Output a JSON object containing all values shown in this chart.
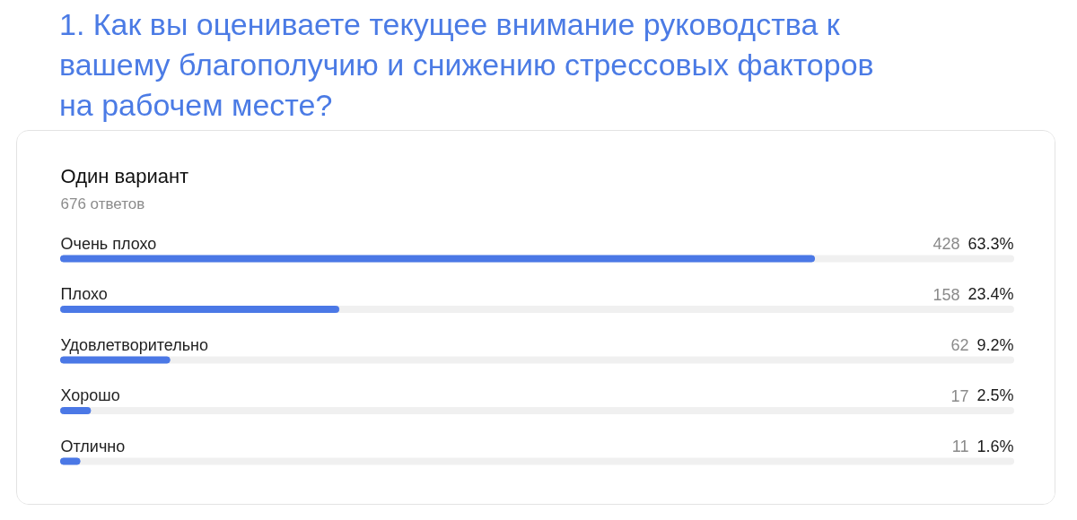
{
  "chart_data": {
    "type": "bar",
    "orientation": "horizontal",
    "title": "1. Как вы оцениваете текущее внимание руководства к вашему благополучию и снижению стрессовых факторов на рабочем месте?",
    "subtitle": "Один вариант",
    "annotations": [
      "676 ответов"
    ],
    "categories": [
      "Очень плохо",
      "Плохо",
      "Удовлетворительно",
      "Хорошо",
      "Отлично"
    ],
    "values": [
      428,
      158,
      62,
      17,
      11
    ],
    "value_labels": [
      "428 63.3%",
      "158 23.4%",
      "62 9.2%",
      "17 2.5%",
      "11 1.6%"
    ],
    "color": "#4b78e6",
    "tick_labels": "y"
  }
}
